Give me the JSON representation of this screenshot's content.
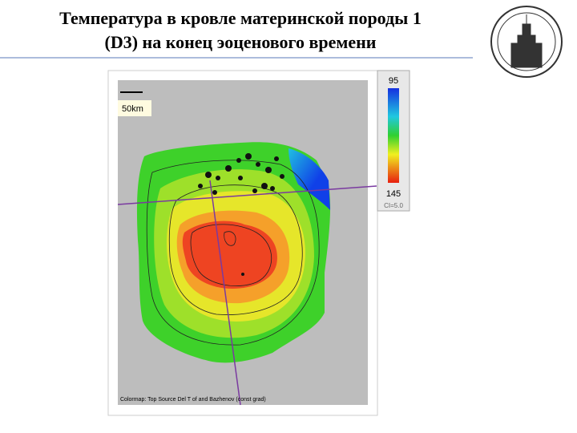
{
  "header": {
    "title_lines": [
      "Температура в кровле материнской породы 1",
      "(D3) на конец эоценового времени"
    ]
  },
  "map": {
    "scale_label": "50km",
    "caption": "Colormap: Top Source Del T of and Bazhenov (const grad)"
  },
  "colorbar": {
    "top_label": "95",
    "bottom_label": "145",
    "note": "CI=5.0"
  }
}
